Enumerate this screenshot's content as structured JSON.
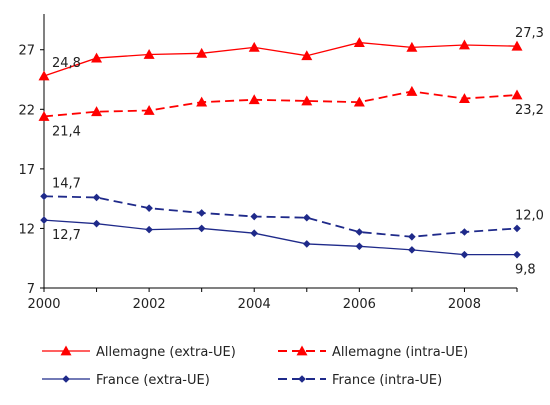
{
  "chart_data": {
    "type": "line",
    "x": [
      2000,
      2001,
      2002,
      2003,
      2004,
      2005,
      2006,
      2007,
      2008,
      2009
    ],
    "xticks": [
      "2000",
      "2002",
      "2004",
      "2006",
      "2008"
    ],
    "xlim": [
      2000,
      2009
    ],
    "ylim": [
      7,
      30
    ],
    "yticks": [
      "7",
      "12",
      "17",
      "22",
      "27"
    ],
    "series": [
      {
        "name": "Allemagne (extra-UE)",
        "color": "#ff0000",
        "dash": "solid",
        "marker": "triangle",
        "values": [
          24.8,
          26.3,
          26.6,
          26.7,
          27.2,
          26.5,
          27.6,
          27.2,
          27.4,
          27.3
        ]
      },
      {
        "name": "Allemagne (intra-UE)",
        "color": "#ff0000",
        "dash": "dashed",
        "marker": "triangle",
        "values": [
          21.4,
          21.8,
          21.9,
          22.6,
          22.8,
          22.7,
          22.6,
          23.5,
          22.9,
          23.2
        ]
      },
      {
        "name": "France (extra-UE)",
        "color": "#1f2a8a",
        "dash": "solid",
        "marker": "diamond",
        "values": [
          12.7,
          12.4,
          11.9,
          12.0,
          11.6,
          10.7,
          10.5,
          10.2,
          9.8,
          9.8
        ]
      },
      {
        "name": "France (intra-UE)",
        "color": "#1f2a8a",
        "dash": "dashed",
        "marker": "diamond",
        "values": [
          14.7,
          14.6,
          13.7,
          13.3,
          13.0,
          12.9,
          11.7,
          11.3,
          11.7,
          12.0
        ]
      }
    ],
    "annotations": [
      {
        "text": "24,8",
        "series": 0,
        "index": 0,
        "pos": "above-right"
      },
      {
        "text": "27,3",
        "series": 0,
        "index": 9,
        "pos": "above-right"
      },
      {
        "text": "21,4",
        "series": 1,
        "index": 0,
        "pos": "below-right"
      },
      {
        "text": "23,2",
        "series": 1,
        "index": 9,
        "pos": "below-right"
      },
      {
        "text": "14,7",
        "series": 3,
        "index": 0,
        "pos": "above-right"
      },
      {
        "text": "12,0",
        "series": 3,
        "index": 9,
        "pos": "above-right"
      },
      {
        "text": "12,7",
        "series": 2,
        "index": 0,
        "pos": "below-right"
      },
      {
        "text": "9,8",
        "series": 2,
        "index": 9,
        "pos": "below-right"
      }
    ],
    "legend_position": "bottom"
  }
}
